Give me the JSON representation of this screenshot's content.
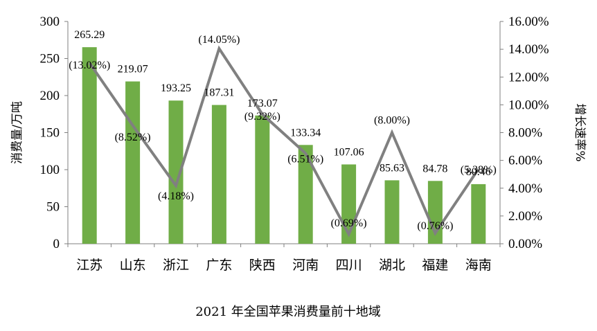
{
  "chart_data": {
    "type": "bar",
    "title": "2021 年全国苹果消费量前十地域",
    "ylabel": "消费量/万吨",
    "y2label": "增长速率%",
    "categories": [
      "江苏",
      "山东",
      "浙江",
      "广东",
      "陕西",
      "河南",
      "四川",
      "湖北",
      "福建",
      "海南"
    ],
    "series": [
      {
        "type": "bar",
        "axis": "left",
        "color": "#70AD47",
        "values": [
          265.29,
          219.07,
          193.25,
          187.31,
          173.07,
          133.34,
          107.06,
          85.63,
          84.78,
          80.46
        ],
        "labels": [
          "265.29",
          "219.07",
          "193.25",
          "187.31",
          "173.07",
          "133.34",
          "107.06",
          "85.63",
          "84.78",
          "80.46"
        ]
      },
      {
        "type": "line",
        "axis": "right",
        "color": "#808080",
        "values": [
          13.02,
          8.52,
          4.18,
          14.05,
          9.32,
          6.51,
          0.69,
          8.0,
          0.76,
          5.38
        ],
        "labels": [
          "(13.02%)",
          "(8.52%)",
          "(4.18%)",
          "(14.05%)",
          "(9.32%)",
          "(6.51%)",
          "(0.69%)",
          "(8.00%)",
          "(0.76%)",
          "(5.38%)"
        ]
      }
    ],
    "ylim": [
      0,
      300
    ],
    "yticks": [
      "0",
      "50",
      "100",
      "150",
      "200",
      "250",
      "300"
    ],
    "y2lim": [
      0,
      16
    ],
    "y2ticks": [
      "0.00%",
      "2.00%",
      "4.00%",
      "6.00%",
      "8.00%",
      "10.00%",
      "12.00%",
      "14.00%",
      "16.00%"
    ],
    "grid": false,
    "legend": "none"
  }
}
